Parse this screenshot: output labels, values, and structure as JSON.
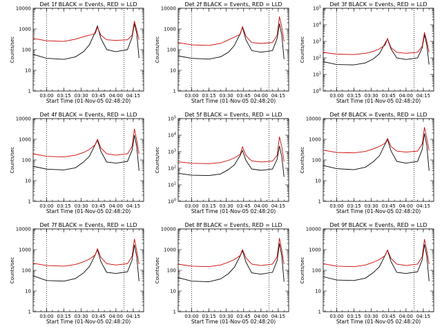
{
  "figure": {
    "x_label": "Start Time (01-Nov-05 02:48:20)",
    "y_label": "Counts/sec"
  },
  "chart_data": [
    {
      "type": "line",
      "title": "Det 1f BLACK = Events, RED = LLD",
      "ylim": [
        1,
        10000
      ],
      "y_scale": "log",
      "y_tick_style": "plain",
      "x_time_range": [
        "02:48:20",
        "04:24:00"
      ],
      "x_ticks": [
        "03:00",
        "03:15",
        "03:30",
        "03:45",
        "04:00",
        "04:15"
      ],
      "y_ticks": [
        "1",
        "10",
        "100",
        "1000",
        "10000"
      ],
      "vlines": [
        "03:00",
        "04:07"
      ],
      "series": [
        {
          "name": "Events",
          "color": "#000000",
          "x": [
            "02:48",
            "03:00",
            "03:15",
            "03:25",
            "03:32",
            "03:37",
            "03:42",
            "03:44",
            "03:47",
            "03:52",
            "04:00",
            "04:10",
            "04:14",
            "04:16",
            "04:18",
            "04:20"
          ],
          "values": [
            60,
            38,
            34,
            45,
            80,
            170,
            700,
            1400,
            350,
            100,
            80,
            100,
            400,
            1800,
            600,
            40
          ]
        },
        {
          "name": "LLD",
          "color": "#cc0000",
          "x": [
            "02:48",
            "03:00",
            "03:15",
            "03:25",
            "03:32",
            "03:37",
            "03:42",
            "03:44",
            "03:47",
            "03:52",
            "04:00",
            "04:10",
            "04:14",
            "04:16",
            "04:18",
            "04:20"
          ],
          "values": [
            350,
            270,
            250,
            320,
            420,
            500,
            600,
            1200,
            500,
            300,
            280,
            300,
            500,
            2400,
            900,
            300
          ]
        }
      ]
    },
    {
      "type": "line",
      "title": "Det 2f BLACK = Events, RED = LLD",
      "ylim": [
        1,
        10000
      ],
      "y_scale": "log",
      "y_tick_style": "plain",
      "x_time_range": [
        "02:48:20",
        "04:24:00"
      ],
      "x_ticks": [
        "03:00",
        "03:15",
        "03:30",
        "03:45",
        "04:00",
        "04:15"
      ],
      "y_ticks": [
        "1",
        "10",
        "100",
        "1000",
        "10000"
      ],
      "vlines": [
        "03:00",
        "04:07"
      ],
      "series": [
        {
          "name": "Events",
          "color": "#000000",
          "x": [
            "02:48",
            "03:00",
            "03:15",
            "03:25",
            "03:32",
            "03:37",
            "03:42",
            "03:44",
            "03:47",
            "03:52",
            "04:00",
            "04:10",
            "04:14",
            "04:16",
            "04:18",
            "04:20"
          ],
          "values": [
            50,
            38,
            35,
            45,
            75,
            160,
            600,
            1200,
            300,
            90,
            75,
            90,
            350,
            1800,
            500,
            35
          ]
        },
        {
          "name": "LLD",
          "color": "#cc0000",
          "x": [
            "02:48",
            "03:00",
            "03:15",
            "03:25",
            "03:32",
            "03:37",
            "03:42",
            "03:44",
            "03:47",
            "03:52",
            "04:00",
            "04:10",
            "04:14",
            "04:16",
            "04:18",
            "04:20"
          ],
          "values": [
            220,
            170,
            160,
            200,
            300,
            400,
            550,
            1300,
            450,
            220,
            200,
            220,
            500,
            4000,
            1200,
            250
          ]
        }
      ]
    },
    {
      "type": "line",
      "title": "Det 3f BLACK = Events, RED = LLD",
      "ylim": [
        1,
        100000
      ],
      "y_scale": "log",
      "y_tick_style": "power",
      "x_time_range": [
        "02:48:20",
        "04:24:00"
      ],
      "x_ticks": [
        "03:00",
        "03:15",
        "03:30",
        "03:45",
        "04:00",
        "04:15"
      ],
      "y_ticks": [
        "10^0",
        "10^1",
        "10^2",
        "10^3",
        "10^4",
        "10^5"
      ],
      "vlines": [
        "03:00",
        "04:07"
      ],
      "series": [
        {
          "name": "Events",
          "color": "#000000",
          "x": [
            "02:48",
            "03:00",
            "03:15",
            "03:25",
            "03:32",
            "03:37",
            "03:42",
            "03:44",
            "03:47",
            "03:52",
            "04:00",
            "04:10",
            "04:14",
            "04:16",
            "04:18",
            "04:20"
          ],
          "values": [
            60,
            40,
            38,
            50,
            90,
            180,
            800,
            1400,
            350,
            100,
            80,
            100,
            400,
            2500,
            600,
            40
          ]
        },
        {
          "name": "LLD",
          "color": "#cc0000",
          "x": [
            "02:48",
            "03:00",
            "03:15",
            "03:25",
            "03:32",
            "03:37",
            "03:42",
            "03:44",
            "03:47",
            "03:52",
            "04:00",
            "04:10",
            "04:14",
            "04:16",
            "04:18",
            "04:20"
          ],
          "values": [
            220,
            170,
            160,
            190,
            250,
            350,
            600,
            1500,
            420,
            220,
            190,
            220,
            500,
            3500,
            1000,
            220
          ]
        }
      ]
    },
    {
      "type": "line",
      "title": "Det 4f BLACK = Events, RED = LLD",
      "ylim": [
        1,
        10000
      ],
      "y_scale": "log",
      "y_tick_style": "plain",
      "x_time_range": [
        "02:48:20",
        "04:24:00"
      ],
      "x_ticks": [
        "03:00",
        "03:15",
        "03:30",
        "03:45",
        "04:00",
        "04:15"
      ],
      "y_ticks": [
        "1",
        "10",
        "100",
        "1000",
        "10000"
      ],
      "vlines": [
        "03:00",
        "04:07"
      ],
      "series": [
        {
          "name": "Events",
          "color": "#000000",
          "x": [
            "02:48",
            "03:00",
            "03:15",
            "03:25",
            "03:32",
            "03:37",
            "03:42",
            "03:44",
            "03:47",
            "03:52",
            "04:00",
            "04:10",
            "04:14",
            "04:16",
            "04:18",
            "04:20"
          ],
          "values": [
            50,
            36,
            33,
            42,
            80,
            150,
            550,
            900,
            260,
            80,
            70,
            85,
            300,
            1600,
            450,
            30
          ]
        },
        {
          "name": "LLD",
          "color": "#cc0000",
          "x": [
            "02:48",
            "03:00",
            "03:15",
            "03:25",
            "03:32",
            "03:37",
            "03:42",
            "03:44",
            "03:47",
            "03:52",
            "04:00",
            "04:10",
            "04:14",
            "04:16",
            "04:18",
            "04:20"
          ],
          "values": [
            200,
            150,
            140,
            170,
            230,
            320,
            550,
            1000,
            380,
            200,
            170,
            200,
            450,
            3200,
            900,
            200
          ]
        }
      ]
    },
    {
      "type": "line",
      "title": "Det 5f BLACK = Events, RED = LLD",
      "ylim": [
        1,
        100000
      ],
      "y_scale": "log",
      "y_tick_style": "power",
      "x_time_range": [
        "02:48:20",
        "04:24:00"
      ],
      "x_ticks": [
        "03:00",
        "03:15",
        "03:30",
        "03:45",
        "04:00",
        "04:15"
      ],
      "y_ticks": [
        "10^0",
        "10^1",
        "10^2",
        "10^3",
        "10^4",
        "10^5"
      ],
      "vlines": [
        "03:00",
        "04:07"
      ],
      "series": [
        {
          "name": "Events",
          "color": "#000000",
          "x": [
            "02:48",
            "03:00",
            "03:15",
            "03:25",
            "03:32",
            "03:37",
            "03:42",
            "03:44",
            "03:47",
            "03:52",
            "04:00",
            "04:10",
            "04:14",
            "04:16",
            "04:18",
            "04:20"
          ],
          "values": [
            50,
            38,
            36,
            45,
            85,
            160,
            600,
            1200,
            300,
            90,
            75,
            90,
            350,
            2200,
            500,
            30
          ]
        },
        {
          "name": "LLD",
          "color": "#cc0000",
          "x": [
            "02:48",
            "03:00",
            "03:15",
            "03:25",
            "03:32",
            "03:37",
            "03:42",
            "03:44",
            "03:47",
            "03:52",
            "04:00",
            "04:10",
            "04:14",
            "04:16",
            "04:18",
            "04:20"
          ],
          "values": [
            250,
            200,
            190,
            220,
            300,
            420,
            700,
            2000,
            600,
            280,
            240,
            270,
            600,
            8000,
            2000,
            250
          ]
        }
      ]
    },
    {
      "type": "line",
      "title": "Det 6f BLACK = Events, RED = LLD",
      "ylim": [
        1,
        10000
      ],
      "y_scale": "log",
      "y_tick_style": "plain",
      "x_time_range": [
        "02:48:20",
        "04:24:00"
      ],
      "x_ticks": [
        "03:00",
        "03:15",
        "03:30",
        "03:45",
        "04:00",
        "04:15"
      ],
      "y_ticks": [
        "1",
        "10",
        "100",
        "1000",
        "10000"
      ],
      "vlines": [
        "03:00",
        "04:07"
      ],
      "series": [
        {
          "name": "Events",
          "color": "#000000",
          "x": [
            "02:48",
            "03:00",
            "03:15",
            "03:25",
            "03:32",
            "03:37",
            "03:42",
            "03:44",
            "03:47",
            "03:52",
            "04:00",
            "04:10",
            "04:14",
            "04:16",
            "04:18",
            "04:20"
          ],
          "values": [
            55,
            38,
            34,
            45,
            85,
            160,
            600,
            1000,
            280,
            85,
            70,
            85,
            320,
            1900,
            500,
            30
          ]
        },
        {
          "name": "LLD",
          "color": "#cc0000",
          "x": [
            "02:48",
            "03:00",
            "03:15",
            "03:25",
            "03:32",
            "03:37",
            "03:42",
            "03:44",
            "03:47",
            "03:52",
            "04:00",
            "04:10",
            "04:14",
            "04:16",
            "04:18",
            "04:20"
          ],
          "values": [
            300,
            230,
            220,
            260,
            350,
            450,
            650,
            1100,
            450,
            270,
            240,
            270,
            600,
            3800,
            1100,
            280
          ]
        }
      ]
    },
    {
      "type": "line",
      "title": "Det 7f BLACK = Events, RED = LLD",
      "ylim": [
        1,
        10000
      ],
      "y_scale": "log",
      "y_tick_style": "plain",
      "x_time_range": [
        "02:48:20",
        "04:24:00"
      ],
      "x_ticks": [
        "03:00",
        "03:15",
        "03:30",
        "03:45",
        "04:00",
        "04:15"
      ],
      "y_ticks": [
        "1",
        "10",
        "100",
        "1000",
        "10000"
      ],
      "vlines": [
        "03:00",
        "04:07"
      ],
      "series": [
        {
          "name": "Events",
          "color": "#000000",
          "x": [
            "02:48",
            "03:00",
            "03:15",
            "03:25",
            "03:32",
            "03:37",
            "03:42",
            "03:44",
            "03:47",
            "03:52",
            "04:00",
            "04:10",
            "04:14",
            "04:16",
            "04:18",
            "04:20"
          ],
          "values": [
            55,
            32,
            30,
            40,
            75,
            150,
            550,
            1000,
            260,
            80,
            70,
            85,
            320,
            1700,
            450,
            30
          ]
        },
        {
          "name": "LLD",
          "color": "#cc0000",
          "x": [
            "02:48",
            "03:00",
            "03:15",
            "03:25",
            "03:32",
            "03:37",
            "03:42",
            "03:44",
            "03:47",
            "03:52",
            "04:00",
            "04:10",
            "04:14",
            "04:16",
            "04:18",
            "04:20"
          ],
          "values": [
            220,
            170,
            160,
            190,
            260,
            350,
            550,
            1100,
            420,
            210,
            180,
            210,
            480,
            3300,
            900,
            200
          ]
        }
      ]
    },
    {
      "type": "line",
      "title": "Det 8f BLACK = Events, RED = LLD",
      "ylim": [
        1,
        10000
      ],
      "y_scale": "log",
      "y_tick_style": "plain",
      "x_time_range": [
        "02:48:20",
        "04:24:00"
      ],
      "x_ticks": [
        "03:00",
        "03:15",
        "03:30",
        "03:45",
        "04:00",
        "04:15"
      ],
      "y_ticks": [
        "1",
        "10",
        "100",
        "1000",
        "10000"
      ],
      "vlines": [
        "03:00",
        "04:07"
      ],
      "series": [
        {
          "name": "Events",
          "color": "#000000",
          "x": [
            "02:48",
            "03:00",
            "03:15",
            "03:25",
            "03:32",
            "03:37",
            "03:42",
            "03:44",
            "03:47",
            "03:52",
            "04:00",
            "04:10",
            "04:14",
            "04:16",
            "04:18",
            "04:20"
          ],
          "values": [
            45,
            30,
            28,
            38,
            70,
            140,
            500,
            900,
            250,
            75,
            65,
            80,
            300,
            2000,
            500,
            28
          ]
        },
        {
          "name": "LLD",
          "color": "#cc0000",
          "x": [
            "02:48",
            "03:00",
            "03:15",
            "03:25",
            "03:32",
            "03:37",
            "03:42",
            "03:44",
            "03:47",
            "03:52",
            "04:00",
            "04:10",
            "04:14",
            "04:16",
            "04:18",
            "04:20"
          ],
          "values": [
            200,
            160,
            150,
            180,
            250,
            330,
            520,
            1000,
            400,
            200,
            170,
            200,
            460,
            3600,
            950,
            200
          ]
        }
      ]
    },
    {
      "type": "line",
      "title": "Det 9f BLACK = Events, RED = LLD",
      "ylim": [
        1,
        10000
      ],
      "y_scale": "log",
      "y_tick_style": "plain",
      "x_time_range": [
        "02:48:20",
        "04:24:00"
      ],
      "x_ticks": [
        "03:00",
        "03:15",
        "03:30",
        "03:45",
        "04:00",
        "04:15"
      ],
      "y_ticks": [
        "1",
        "10",
        "100",
        "1000",
        "10000"
      ],
      "vlines": [
        "03:00",
        "04:07"
      ],
      "series": [
        {
          "name": "Events",
          "color": "#000000",
          "x": [
            "02:48",
            "03:00",
            "03:15",
            "03:25",
            "03:32",
            "03:37",
            "03:42",
            "03:44",
            "03:47",
            "03:52",
            "04:00",
            "04:10",
            "04:14",
            "04:16",
            "04:18",
            "04:20"
          ],
          "values": [
            50,
            34,
            32,
            42,
            80,
            150,
            550,
            950,
            270,
            80,
            70,
            85,
            320,
            1800,
            480,
            30
          ]
        },
        {
          "name": "LLD",
          "color": "#cc0000",
          "x": [
            "02:48",
            "03:00",
            "03:15",
            "03:25",
            "03:32",
            "03:37",
            "03:42",
            "03:44",
            "03:47",
            "03:52",
            "04:00",
            "04:10",
            "04:14",
            "04:16",
            "04:18",
            "04:20"
          ],
          "values": [
            210,
            160,
            150,
            180,
            250,
            330,
            520,
            950,
            380,
            200,
            170,
            200,
            450,
            3200,
            900,
            200
          ]
        }
      ]
    }
  ]
}
